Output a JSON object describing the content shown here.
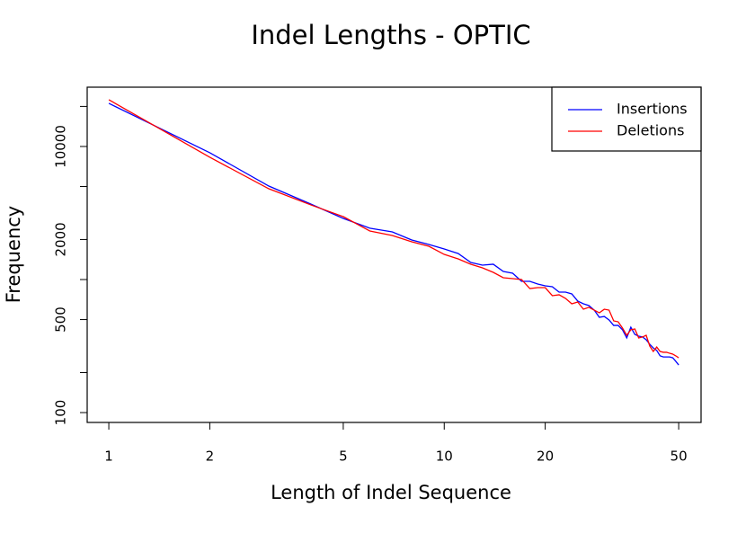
{
  "chart_data": {
    "type": "line",
    "title": "Indel Lengths - OPTIC",
    "x_label": "Length of Indel Sequence",
    "y_label": "Frequency",
    "x_scale": "log",
    "y_scale": "log",
    "x": [
      1,
      2,
      3,
      4,
      5,
      6,
      7,
      8,
      9,
      10,
      11,
      12,
      13,
      14,
      15,
      16,
      17,
      18,
      19,
      20,
      21,
      22,
      23,
      24,
      25,
      26,
      27,
      28,
      29,
      30,
      31,
      32,
      33,
      34,
      35,
      36,
      37,
      38,
      39,
      40,
      41,
      42,
      43,
      44,
      45,
      46,
      47,
      48,
      49,
      50
    ],
    "series": [
      {
        "name": "Insertions",
        "color": "#0000ff",
        "values": [
          21100,
          8970,
          5040,
          3695,
          2880,
          2430,
          2280,
          1983,
          1835,
          1697,
          1570,
          1344,
          1283,
          1303,
          1150,
          1115,
          969,
          969,
          925,
          897,
          883,
          804,
          804,
          780,
          689,
          657,
          637,
          589,
          520,
          528,
          497,
          452,
          452,
          419,
          364,
          438,
          387,
          375,
          370,
          353,
          326,
          306,
          293,
          267,
          262,
          262,
          262,
          258,
          243,
          228
        ]
      },
      {
        "name": "Deletions",
        "color": "#ff0000",
        "values": [
          22450,
          8300,
          4810,
          3640,
          2970,
          2317,
          2143,
          1922,
          1778,
          1545,
          1430,
          1303,
          1224,
          1132,
          1032,
          1016,
          1000,
          855,
          869,
          869,
          756,
          768,
          721,
          657,
          678,
          598,
          618,
          589,
          562,
          598,
          589,
          489,
          481,
          432,
          381,
          419,
          425,
          364,
          370,
          381,
          316,
          288,
          311,
          288,
          284,
          284,
          279,
          275,
          267,
          258
        ]
      }
    ],
    "xlim": [
      0.862,
      58.3
    ],
    "ylim": [
      84.3,
      27900
    ],
    "xticks": [
      1,
      2,
      5,
      10,
      20,
      50
    ],
    "yticks": [
      100,
      {
        "value": 200,
        "label": null
      },
      500,
      {
        "value": 1000,
        "label": null
      },
      2000,
      {
        "value": 5000,
        "label": null
      },
      10000,
      {
        "value": 20000,
        "label": null
      }
    ],
    "legend_position": "top-right"
  }
}
